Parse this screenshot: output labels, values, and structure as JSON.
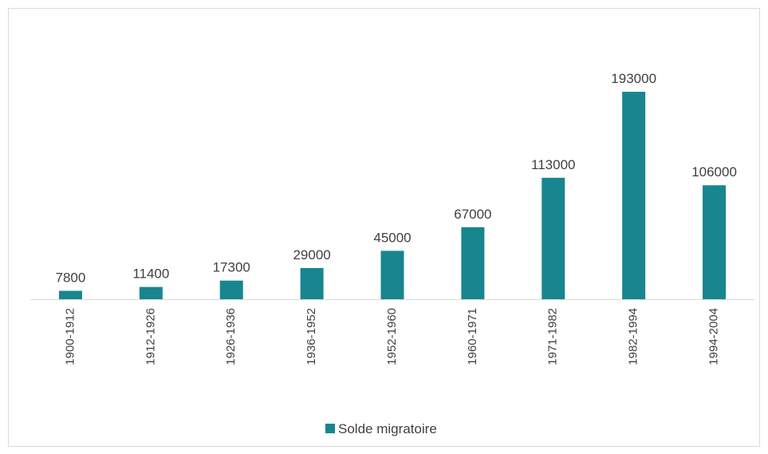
{
  "chart_data": {
    "type": "bar",
    "categories": [
      "1900-1912",
      "1912-1926",
      "1926-1936",
      "1936-1952",
      "1952-1960",
      "1960-1971",
      "1971-1982",
      "1982-1994",
      "1994-2004"
    ],
    "series": [
      {
        "name": "Solde migratoire",
        "color": "#17868f",
        "values": [
          7800,
          11400,
          17300,
          29000,
          45000,
          67000,
          113000,
          193000,
          106000
        ]
      }
    ],
    "ylim": [
      0,
      200000
    ],
    "legend": "bottom"
  }
}
